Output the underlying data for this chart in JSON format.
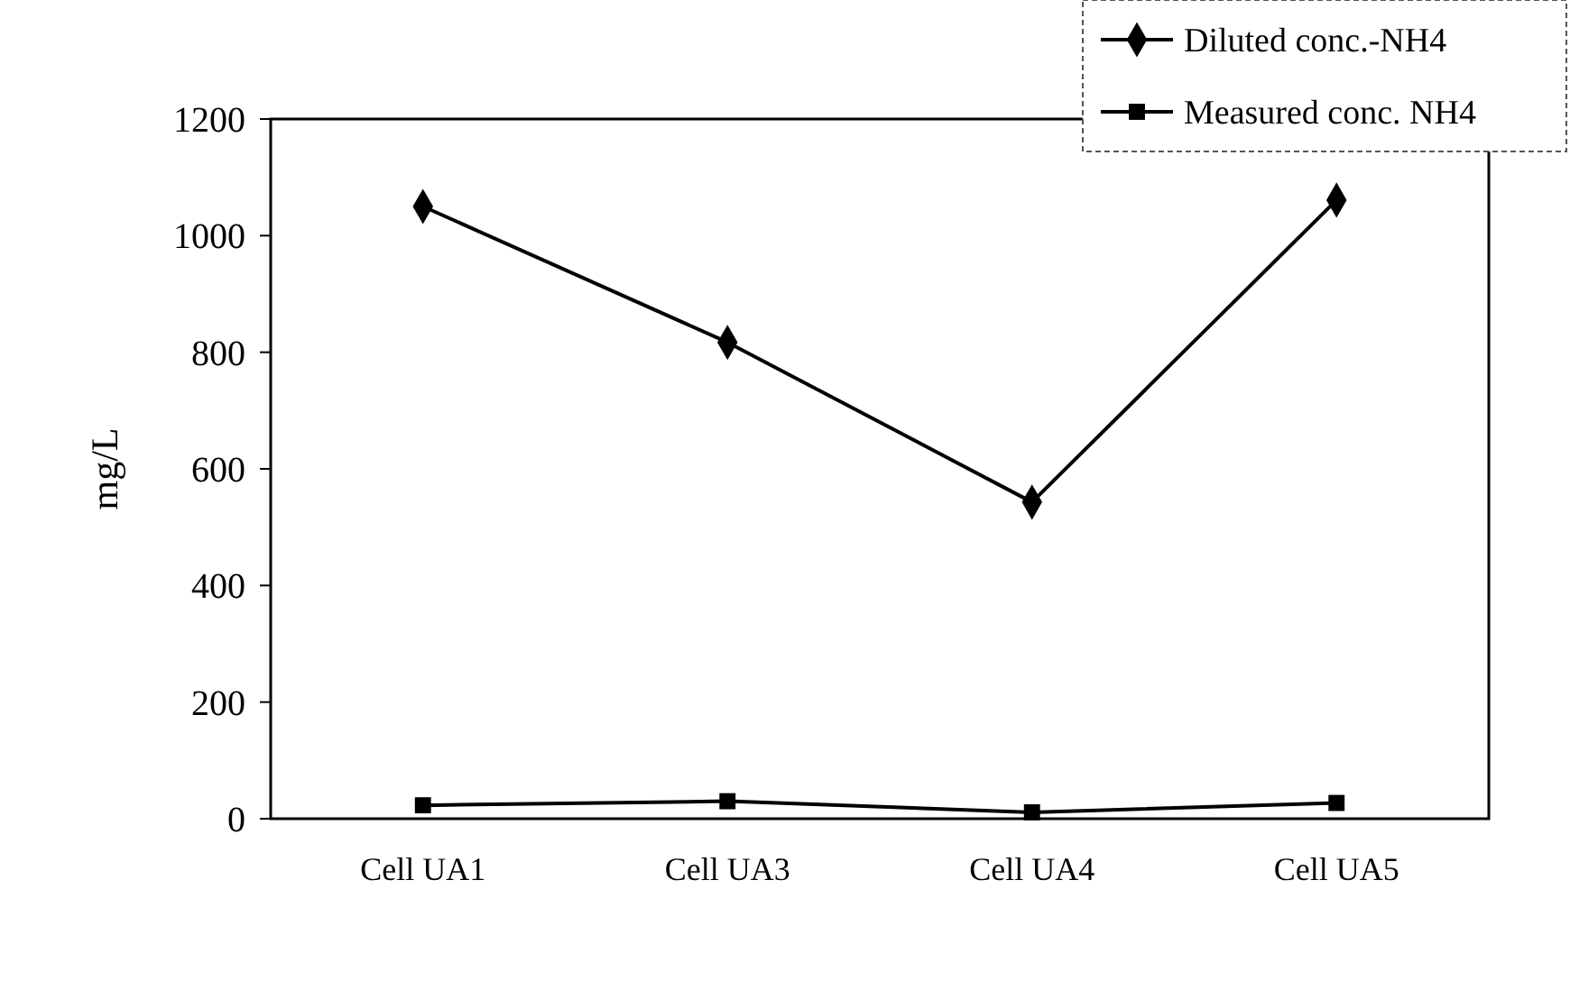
{
  "chart_data": {
    "type": "line",
    "ylabel": "mg/L",
    "categories": [
      "Cell UA1",
      "Cell UA3",
      "Cell UA4",
      "Cell UA5"
    ],
    "series": [
      {
        "name": "Diluted conc.-NH4",
        "color": "#000000",
        "marker": "diamond",
        "values": [
          1050,
          817,
          543,
          1061
        ]
      },
      {
        "name": "Measured conc. NH4",
        "color": "#000000",
        "marker": "square",
        "values": [
          23,
          30,
          11,
          27
        ]
      }
    ],
    "ylim": [
      0,
      1200
    ],
    "yticks": [
      0,
      200,
      400,
      600,
      800,
      1000,
      1200
    ],
    "legend": "top right",
    "grid": false,
    "line_style": "solid"
  }
}
